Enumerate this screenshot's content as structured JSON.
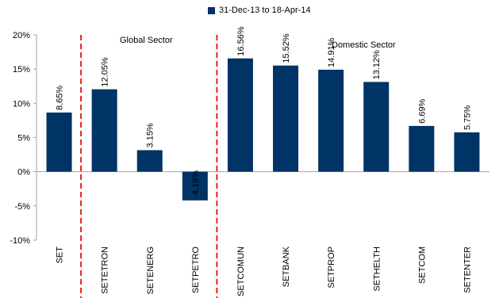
{
  "chart_data": {
    "type": "bar",
    "categories": [
      "SET",
      "SETETRON",
      "SETENERG",
      "SETPETRO",
      "SETCOMUN",
      "SETBANK",
      "SETPROP",
      "SETHELTH",
      "SETCOM",
      "SETENTER"
    ],
    "series": [
      {
        "name": "31-Dec-13 to 18-Apr-14",
        "values": [
          8.65,
          12.05,
          3.15,
          -4.19,
          16.56,
          15.52,
          14.91,
          13.12,
          6.69,
          5.75
        ],
        "labels": [
          "8.65%",
          "12.05%",
          "3.15%",
          "-4.19%",
          "16.56%",
          "15.52%",
          "14.91%",
          "13.12%",
          "6.69%",
          "5.75%"
        ]
      }
    ],
    "ylim": [
      -10,
      20
    ],
    "yticks": [
      20,
      15,
      10,
      5,
      0,
      -5,
      -10
    ],
    "ytick_labels": [
      "20%",
      "15%",
      "10%",
      "5%",
      "0%",
      "-5%",
      "-10%"
    ],
    "grid": false,
    "legend_position": "top-center",
    "annotations": {
      "global_sector": "Global Sector",
      "domestic_sector": "Domestic Sector"
    },
    "divider_after_indices": [
      0,
      3
    ],
    "colors": {
      "bar": "#003366",
      "divider": "#e8201a",
      "axis": "#a6a6a6"
    }
  }
}
